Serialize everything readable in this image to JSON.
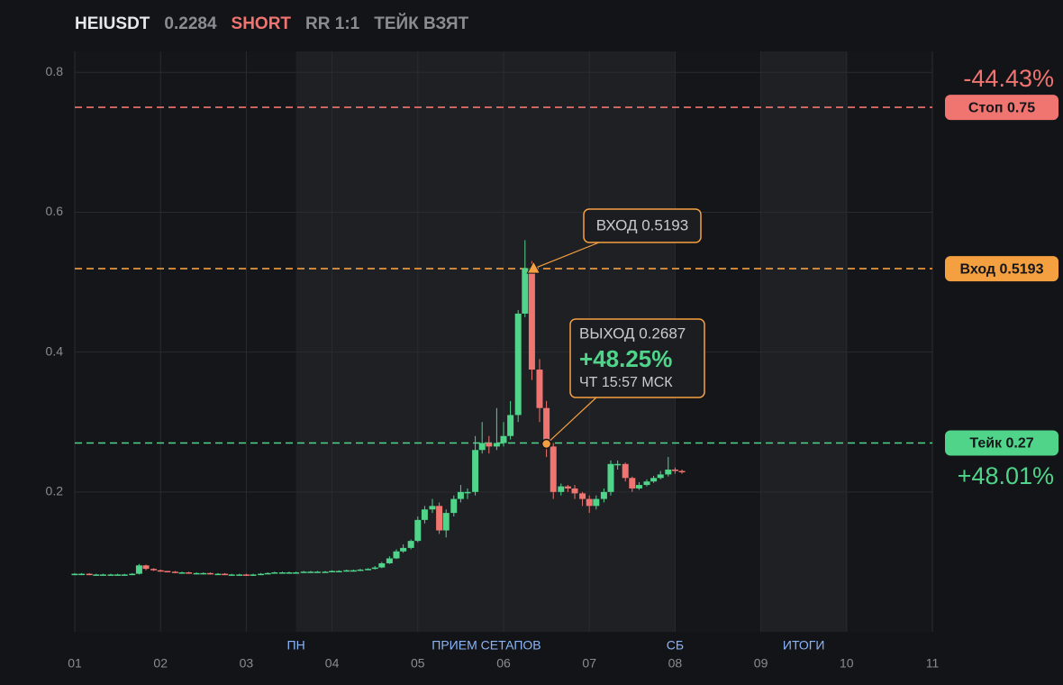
{
  "header": {
    "symbol": "HEIUSDT",
    "price": "0.2284",
    "side": "SHORT",
    "rr": "RR 1:1",
    "status": "ТЕЙК ВЗЯТ"
  },
  "chart_data": {
    "type": "candlestick",
    "x": [
      1,
      1.08,
      1.17,
      1.25,
      1.33,
      1.42,
      1.5,
      1.58,
      1.67,
      1.75,
      1.83,
      1.92,
      2,
      2.08,
      2.17,
      2.25,
      2.33,
      2.42,
      2.5,
      2.58,
      2.67,
      2.75,
      2.83,
      2.92,
      3,
      3.08,
      3.17,
      3.25,
      3.33,
      3.42,
      3.5,
      3.58,
      3.67,
      3.75,
      3.83,
      3.92,
      4,
      4.08,
      4.17,
      4.25,
      4.33,
      4.42,
      4.5,
      4.58,
      4.67,
      4.75,
      4.83,
      4.92,
      5,
      5.08,
      5.17,
      5.25,
      5.33,
      5.42,
      5.5,
      5.58,
      5.67,
      5.75,
      5.83,
      5.92,
      6,
      6.08,
      6.17,
      6.25,
      6.33,
      6.42,
      6.5,
      6.58,
      6.67,
      6.75,
      6.83,
      6.92,
      7,
      7.08,
      7.17,
      7.25,
      7.33,
      7.42,
      7.5,
      7.58,
      7.67,
      7.75,
      7.83,
      7.92,
      8,
      8.08
    ],
    "open": [
      0.082,
      0.083,
      0.083,
      0.082,
      0.082,
      0.082,
      0.082,
      0.082,
      0.082,
      0.083,
      0.095,
      0.09,
      0.088,
      0.087,
      0.086,
      0.085,
      0.085,
      0.084,
      0.084,
      0.084,
      0.083,
      0.083,
      0.082,
      0.082,
      0.082,
      0.081,
      0.082,
      0.083,
      0.084,
      0.085,
      0.085,
      0.085,
      0.085,
      0.086,
      0.086,
      0.086,
      0.086,
      0.087,
      0.087,
      0.088,
      0.088,
      0.089,
      0.09,
      0.092,
      0.098,
      0.105,
      0.115,
      0.12,
      0.13,
      0.16,
      0.175,
      0.18,
      0.145,
      0.17,
      0.19,
      0.2,
      0.2,
      0.26,
      0.27,
      0.265,
      0.27,
      0.28,
      0.31,
      0.455,
      0.52,
      0.375,
      0.32,
      0.265,
      0.2,
      0.208,
      0.205,
      0.198,
      0.19,
      0.18,
      0.19,
      0.2,
      0.24,
      0.24,
      0.22,
      0.205,
      0.21,
      0.215,
      0.22,
      0.225,
      0.232,
      0.23
    ],
    "high": [
      0.084,
      0.084,
      0.084,
      0.083,
      0.083,
      0.083,
      0.083,
      0.083,
      0.084,
      0.097,
      0.096,
      0.091,
      0.089,
      0.087,
      0.087,
      0.086,
      0.086,
      0.085,
      0.085,
      0.085,
      0.084,
      0.084,
      0.083,
      0.083,
      0.083,
      0.083,
      0.084,
      0.085,
      0.086,
      0.086,
      0.086,
      0.086,
      0.087,
      0.087,
      0.087,
      0.087,
      0.088,
      0.088,
      0.089,
      0.089,
      0.09,
      0.091,
      0.094,
      0.1,
      0.108,
      0.118,
      0.125,
      0.132,
      0.165,
      0.18,
      0.19,
      0.185,
      0.175,
      0.195,
      0.21,
      0.205,
      0.28,
      0.3,
      0.28,
      0.32,
      0.3,
      0.33,
      0.46,
      0.56,
      0.53,
      0.39,
      0.33,
      0.27,
      0.212,
      0.21,
      0.21,
      0.2,
      0.195,
      0.195,
      0.205,
      0.245,
      0.245,
      0.242,
      0.222,
      0.214,
      0.218,
      0.223,
      0.23,
      0.25,
      0.235,
      0.232
    ],
    "low": [
      0.081,
      0.082,
      0.081,
      0.081,
      0.081,
      0.081,
      0.081,
      0.081,
      0.081,
      0.082,
      0.088,
      0.087,
      0.086,
      0.085,
      0.084,
      0.084,
      0.083,
      0.083,
      0.083,
      0.082,
      0.082,
      0.081,
      0.081,
      0.081,
      0.08,
      0.08,
      0.081,
      0.083,
      0.084,
      0.084,
      0.084,
      0.084,
      0.085,
      0.085,
      0.085,
      0.085,
      0.086,
      0.086,
      0.086,
      0.087,
      0.087,
      0.088,
      0.089,
      0.091,
      0.097,
      0.104,
      0.113,
      0.118,
      0.128,
      0.155,
      0.17,
      0.14,
      0.135,
      0.165,
      0.185,
      0.19,
      0.195,
      0.255,
      0.255,
      0.26,
      0.265,
      0.275,
      0.3,
      0.45,
      0.36,
      0.3,
      0.25,
      0.19,
      0.195,
      0.2,
      0.19,
      0.18,
      0.17,
      0.175,
      0.185,
      0.195,
      0.232,
      0.215,
      0.2,
      0.203,
      0.208,
      0.213,
      0.218,
      0.222,
      0.226,
      0.226
    ],
    "close": [
      0.083,
      0.083,
      0.082,
      0.082,
      0.082,
      0.082,
      0.082,
      0.082,
      0.083,
      0.095,
      0.09,
      0.088,
      0.087,
      0.086,
      0.085,
      0.085,
      0.084,
      0.084,
      0.084,
      0.083,
      0.083,
      0.082,
      0.082,
      0.082,
      0.081,
      0.082,
      0.083,
      0.084,
      0.085,
      0.085,
      0.085,
      0.085,
      0.086,
      0.086,
      0.086,
      0.086,
      0.087,
      0.087,
      0.088,
      0.088,
      0.089,
      0.09,
      0.092,
      0.098,
      0.105,
      0.115,
      0.12,
      0.13,
      0.16,
      0.175,
      0.18,
      0.145,
      0.17,
      0.19,
      0.2,
      0.2,
      0.26,
      0.27,
      0.265,
      0.27,
      0.28,
      0.31,
      0.455,
      0.52,
      0.375,
      0.32,
      0.265,
      0.2,
      0.208,
      0.205,
      0.198,
      0.19,
      0.18,
      0.19,
      0.2,
      0.24,
      0.24,
      0.22,
      0.205,
      0.21,
      0.215,
      0.22,
      0.225,
      0.232,
      0.23,
      0.2284
    ],
    "up_color": "#4fd48a",
    "down_color": "#f07470",
    "xlim": [
      1,
      11
    ],
    "xticks": [
      {
        "value": 1,
        "label": "01"
      },
      {
        "value": 2,
        "label": "02"
      },
      {
        "value": 3,
        "label": "03"
      },
      {
        "value": 4,
        "label": "04"
      },
      {
        "value": 5,
        "label": "05"
      },
      {
        "value": 6,
        "label": "06"
      },
      {
        "value": 7,
        "label": "07"
      },
      {
        "value": 8,
        "label": "08"
      },
      {
        "value": 9,
        "label": "09"
      },
      {
        "value": 10,
        "label": "10"
      },
      {
        "value": 11,
        "label": "11"
      }
    ],
    "ylim": [
      0,
      0.83
    ],
    "yticks": [
      0.2,
      0.4,
      0.6,
      0.8
    ],
    "grid": true,
    "shaded": [
      [
        3.58,
        8
      ],
      [
        9,
        10
      ]
    ],
    "sessions": [
      {
        "x": 3.58,
        "label": "ПН"
      },
      {
        "x": 5.8,
        "label": "ПРИЕМ СЕТАПОВ"
      },
      {
        "x": 8,
        "label": "СБ"
      },
      {
        "x": 9.5,
        "label": "ИТОГИ"
      }
    ],
    "levels": [
      {
        "name": "Стоп 0.75",
        "value": 0.75,
        "color": "#f07470"
      },
      {
        "name": "Вход 0.5193",
        "value": 0.5193,
        "color": "#f5a040"
      },
      {
        "name": "Тейк 0.27",
        "value": 0.27,
        "color": "#4fd48a"
      }
    ],
    "stop_result": "-44.43%",
    "take_result": "+48.01%",
    "entry": {
      "x": 6.35,
      "y": 0.5193,
      "label": "ВХОД 0.5193"
    },
    "exit": {
      "x": 6.5,
      "y": 0.2687,
      "label": "ВЫХОД 0.2687",
      "result": "+48.25%",
      "time": "ЧТ 15:57 МСК"
    }
  }
}
